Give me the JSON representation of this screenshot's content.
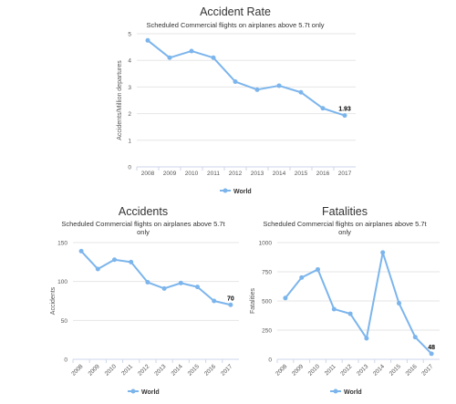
{
  "colors": {
    "series": "#7cb5ec",
    "grid": "#e6e6e6",
    "axis": "#ccd6eb"
  },
  "chart_data": [
    {
      "type": "line",
      "title": "Accident Rate",
      "subtitle": "Scheduled Commercial flights on airplanes above 5.7t only",
      "ylabel": "Accidents/Million departures",
      "xlabel": "",
      "categories": [
        "2008",
        "2009",
        "2010",
        "2011",
        "2012",
        "2013",
        "2014",
        "2015",
        "2016",
        "2017"
      ],
      "series": [
        {
          "name": "World",
          "values": [
            4.75,
            4.1,
            4.35,
            4.1,
            3.2,
            2.9,
            3.05,
            2.8,
            2.2,
            1.93
          ]
        }
      ],
      "ylim": [
        0,
        5
      ],
      "yticks": [
        "0",
        "1",
        "2",
        "3",
        "4",
        "5"
      ],
      "last_label": "1.93",
      "grid": true,
      "legend": "bottom-center"
    },
    {
      "type": "line",
      "title": "Accidents",
      "subtitle": [
        "Scheduled Commercial flights on airplanes above 5.7t",
        "only"
      ],
      "ylabel": "Accidents",
      "xlabel": "",
      "categories": [
        "2008",
        "2009",
        "2010",
        "2011",
        "2012",
        "2013",
        "2014",
        "2015",
        "2016",
        "2017"
      ],
      "series": [
        {
          "name": "World",
          "values": [
            139,
            116,
            128,
            125,
            99,
            91,
            98,
            93,
            75,
            70
          ]
        }
      ],
      "ylim": [
        0,
        150
      ],
      "yticks": [
        "0",
        "50",
        "100",
        "150"
      ],
      "last_label": "70",
      "grid": true,
      "legend": "bottom-center"
    },
    {
      "type": "line",
      "title": "Fatalities",
      "subtitle": [
        "Scheduled Commercial flights on airplanes above 5.7t",
        "only"
      ],
      "ylabel": "Fatalities",
      "xlabel": "",
      "categories": [
        "2008",
        "2009",
        "2010",
        "2011",
        "2012",
        "2013",
        "2014",
        "2015",
        "2016",
        "2017"
      ],
      "series": [
        {
          "name": "World",
          "values": [
            525,
            700,
            770,
            430,
            390,
            180,
            915,
            480,
            190,
            48
          ]
        }
      ],
      "ylim": [
        0,
        1000
      ],
      "yticks": [
        "0",
        "250",
        "500",
        "750",
        "1000"
      ],
      "last_label": "48",
      "grid": true,
      "legend": "bottom-center"
    }
  ]
}
